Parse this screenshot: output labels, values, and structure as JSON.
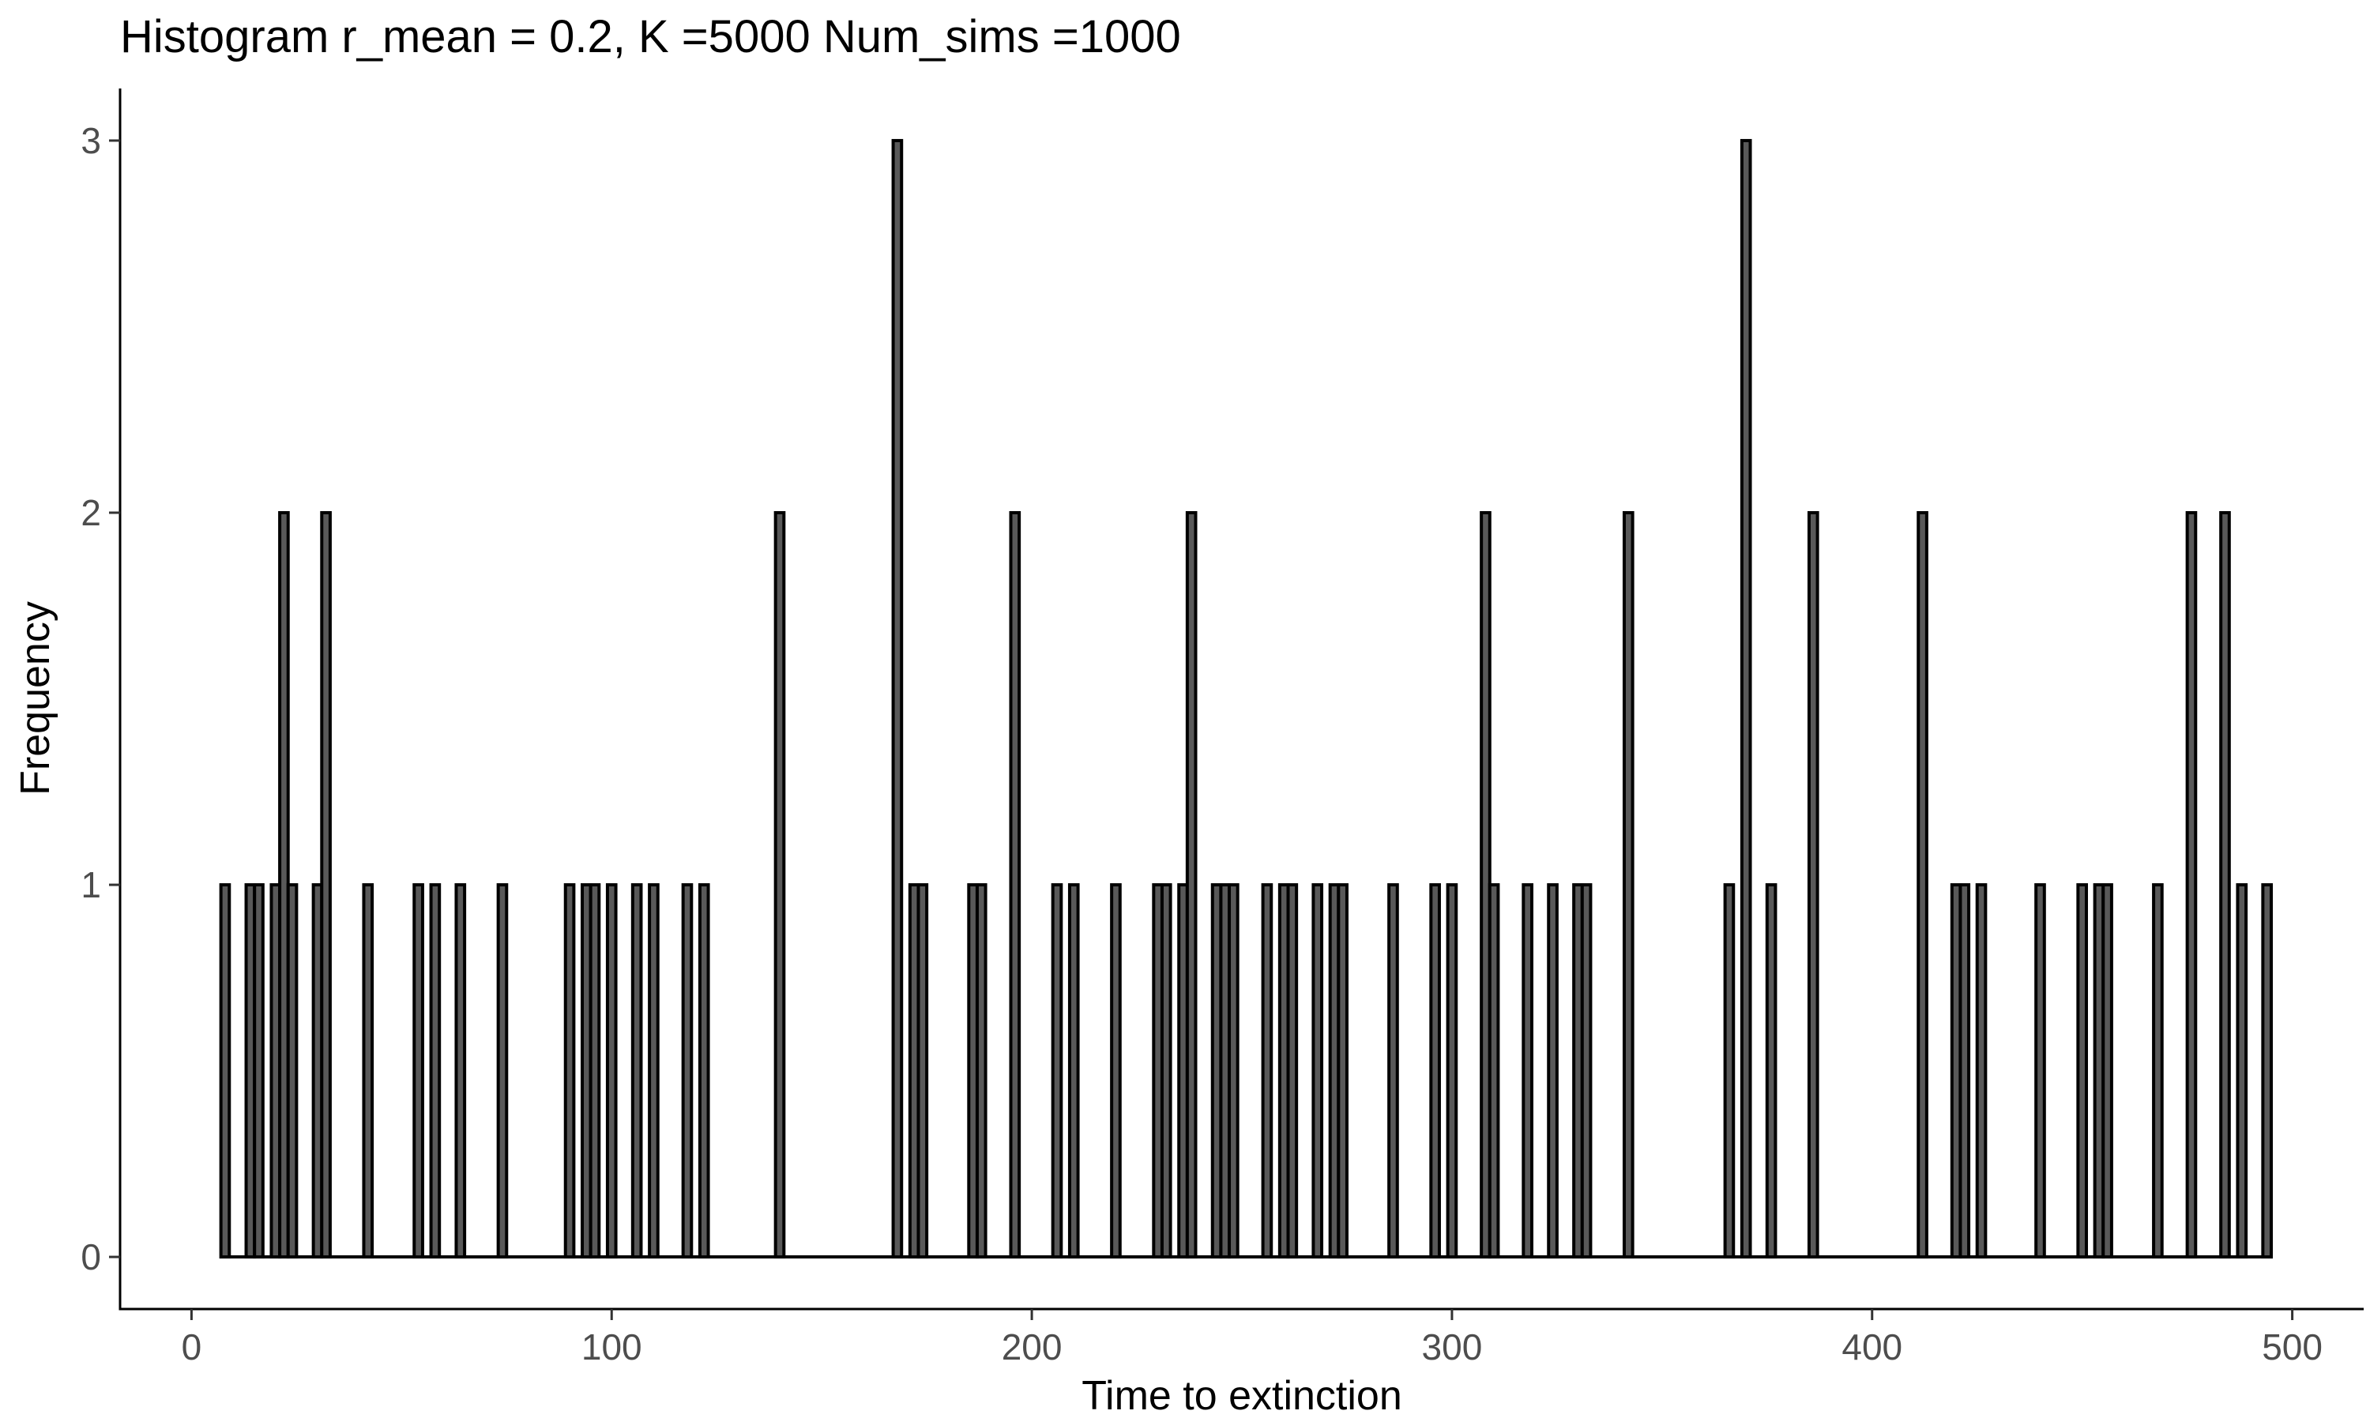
{
  "chart_data": {
    "type": "bar",
    "title": "Histogram r_mean = 0.2, K =5000 Num_sims =1000",
    "xlabel": "Time to extinction",
    "ylabel": "Frequency",
    "xlim": [
      -17,
      517
    ],
    "ylim": [
      -0.14,
      3.14
    ],
    "xticks": [
      0,
      100,
      200,
      300,
      400,
      500
    ],
    "yticks": [
      0,
      1,
      2,
      3
    ],
    "grid": false,
    "bar_fill": "#595959",
    "bar_outline": "#000000",
    "binwidth": 2,
    "bins": [
      {
        "x": 8,
        "count": 1
      },
      {
        "x": 14,
        "count": 1
      },
      {
        "x": 16,
        "count": 1
      },
      {
        "x": 20,
        "count": 1
      },
      {
        "x": 22,
        "count": 2
      },
      {
        "x": 24,
        "count": 1
      },
      {
        "x": 30,
        "count": 1
      },
      {
        "x": 32,
        "count": 2
      },
      {
        "x": 42,
        "count": 1
      },
      {
        "x": 54,
        "count": 1
      },
      {
        "x": 58,
        "count": 1
      },
      {
        "x": 64,
        "count": 1
      },
      {
        "x": 74,
        "count": 1
      },
      {
        "x": 90,
        "count": 1
      },
      {
        "x": 94,
        "count": 1
      },
      {
        "x": 96,
        "count": 1
      },
      {
        "x": 100,
        "count": 1
      },
      {
        "x": 106,
        "count": 1
      },
      {
        "x": 110,
        "count": 1
      },
      {
        "x": 118,
        "count": 1
      },
      {
        "x": 122,
        "count": 1
      },
      {
        "x": 140,
        "count": 2
      },
      {
        "x": 168,
        "count": 3
      },
      {
        "x": 172,
        "count": 1
      },
      {
        "x": 174,
        "count": 1
      },
      {
        "x": 186,
        "count": 1
      },
      {
        "x": 188,
        "count": 1
      },
      {
        "x": 196,
        "count": 2
      },
      {
        "x": 206,
        "count": 1
      },
      {
        "x": 210,
        "count": 1
      },
      {
        "x": 220,
        "count": 1
      },
      {
        "x": 230,
        "count": 1
      },
      {
        "x": 232,
        "count": 1
      },
      {
        "x": 236,
        "count": 1
      },
      {
        "x": 238,
        "count": 2
      },
      {
        "x": 244,
        "count": 1
      },
      {
        "x": 246,
        "count": 1
      },
      {
        "x": 248,
        "count": 1
      },
      {
        "x": 256,
        "count": 1
      },
      {
        "x": 260,
        "count": 1
      },
      {
        "x": 262,
        "count": 1
      },
      {
        "x": 268,
        "count": 1
      },
      {
        "x": 272,
        "count": 1
      },
      {
        "x": 274,
        "count": 1
      },
      {
        "x": 286,
        "count": 1
      },
      {
        "x": 296,
        "count": 1
      },
      {
        "x": 300,
        "count": 1
      },
      {
        "x": 308,
        "count": 2
      },
      {
        "x": 310,
        "count": 1
      },
      {
        "x": 318,
        "count": 1
      },
      {
        "x": 324,
        "count": 1
      },
      {
        "x": 330,
        "count": 1
      },
      {
        "x": 332,
        "count": 1
      },
      {
        "x": 342,
        "count": 2
      },
      {
        "x": 366,
        "count": 1
      },
      {
        "x": 370,
        "count": 3
      },
      {
        "x": 376,
        "count": 1
      },
      {
        "x": 386,
        "count": 2
      },
      {
        "x": 412,
        "count": 2
      },
      {
        "x": 420,
        "count": 1
      },
      {
        "x": 422,
        "count": 1
      },
      {
        "x": 426,
        "count": 1
      },
      {
        "x": 440,
        "count": 1
      },
      {
        "x": 450,
        "count": 1
      },
      {
        "x": 454,
        "count": 1
      },
      {
        "x": 456,
        "count": 1
      },
      {
        "x": 468,
        "count": 1
      },
      {
        "x": 476,
        "count": 2
      },
      {
        "x": 484,
        "count": 2
      },
      {
        "x": 488,
        "count": 1
      },
      {
        "x": 494,
        "count": 1
      }
    ]
  }
}
